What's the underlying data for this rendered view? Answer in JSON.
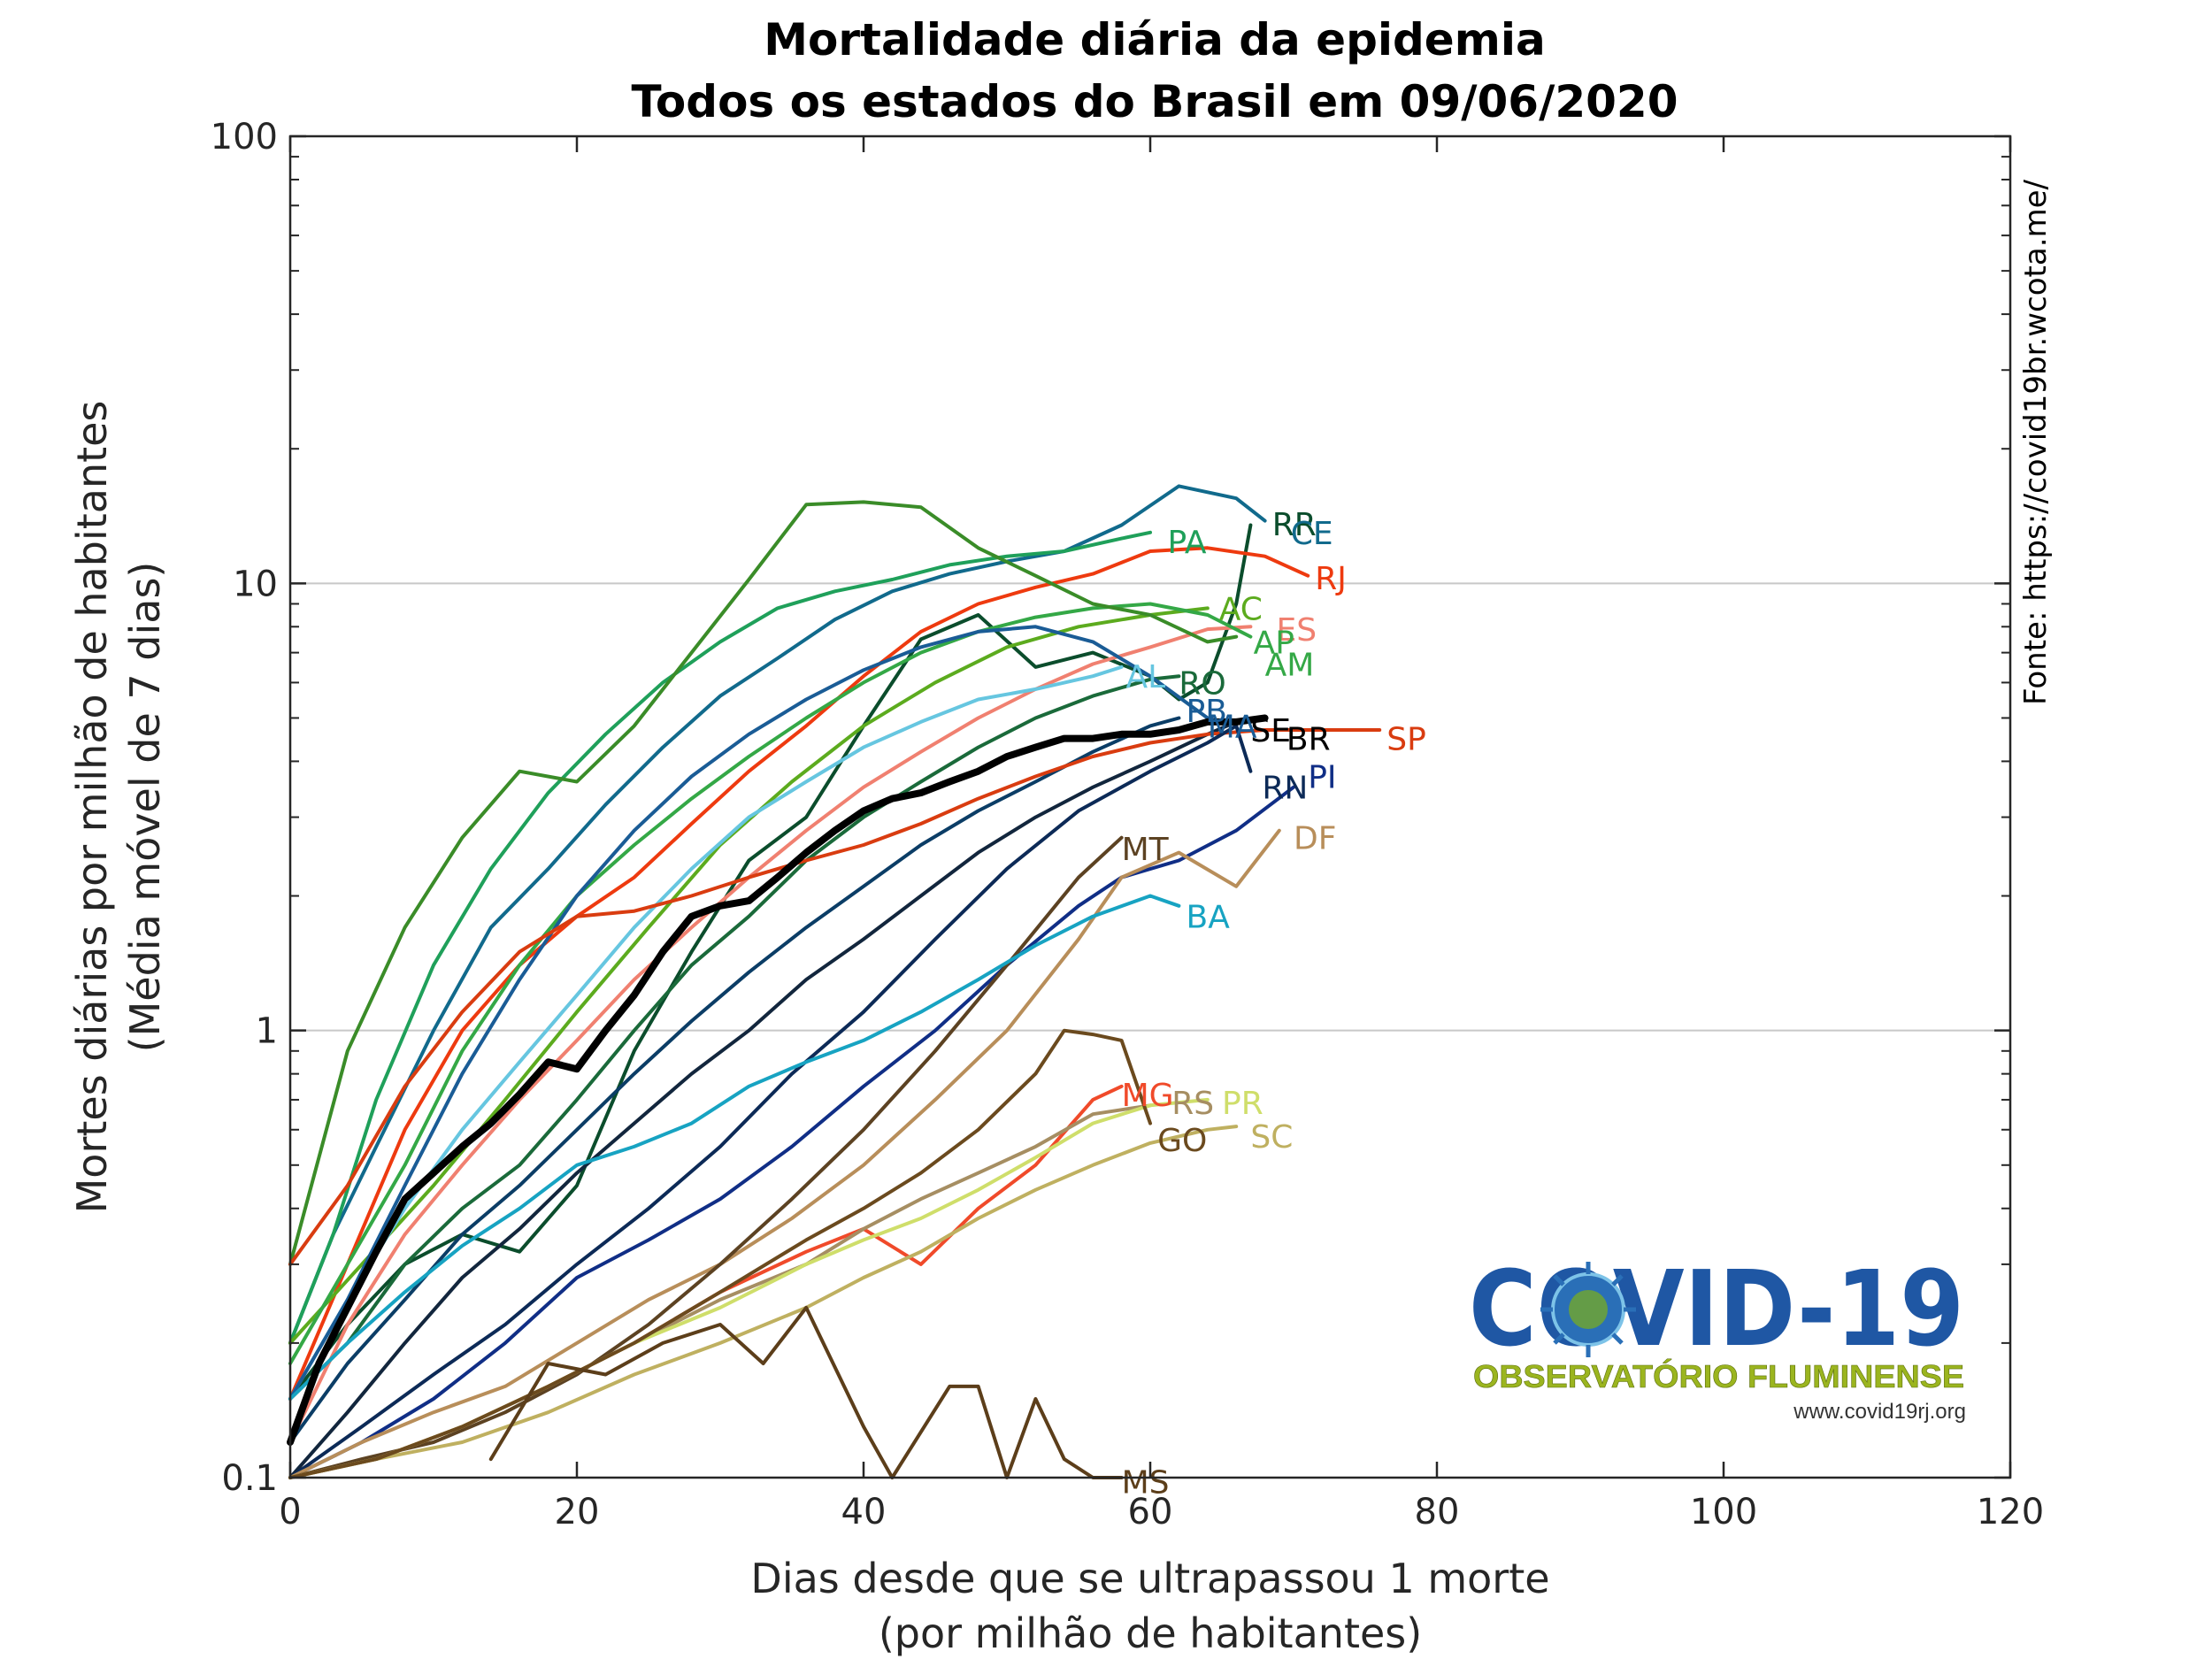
{
  "chart_data": {
    "type": "line",
    "title": "Mortalidade diária da epidemia",
    "subtitle": "Todos os estados do Brasil em 09/06/2020",
    "xlabel": [
      "Dias desde que se ultrapassou 1 morte",
      "(por milhão de habitantes)"
    ],
    "ylabel": [
      "Mortes diárias por milhão de habitantes",
      "(Média móvel de 7 dias)"
    ],
    "source": "Fonte: https://covid19br.wcota.me/",
    "xlim": [
      0,
      120
    ],
    "ylim": [
      0.1,
      100
    ],
    "yscale": "log",
    "x_ticks": [
      "0",
      "20",
      "40",
      "60",
      "80",
      "100",
      "120"
    ],
    "y_ticks": [
      "0.1",
      "1",
      "10",
      "100"
    ],
    "grid": "horizontal at decades",
    "series": [
      {
        "name": "RR",
        "color": "#0b4d2c",
        "x": [
          0,
          4,
          8,
          12,
          16,
          20,
          24,
          28,
          32,
          36,
          40,
          44,
          48,
          52,
          56,
          60,
          62,
          64,
          66,
          67
        ],
        "y": [
          0.15,
          0.22,
          0.3,
          0.35,
          0.32,
          0.45,
          0.9,
          1.5,
          2.4,
          3.0,
          4.8,
          7.5,
          8.5,
          6.5,
          7.0,
          6.2,
          5.5,
          6.0,
          9.0,
          13.5
        ]
      },
      {
        "name": "CE",
        "color": "#116a8c",
        "x": [
          0,
          3,
          6,
          10,
          14,
          18,
          22,
          26,
          30,
          34,
          38,
          42,
          46,
          50,
          54,
          58,
          62,
          66,
          68
        ],
        "y": [
          0.2,
          0.35,
          0.55,
          1.0,
          1.7,
          2.3,
          3.2,
          4.3,
          5.6,
          6.8,
          8.3,
          9.6,
          10.5,
          11.2,
          11.8,
          13.5,
          16.5,
          15.5,
          13.8
        ]
      },
      {
        "name": "RJ",
        "color": "#ee3a0f",
        "x": [
          0,
          4,
          8,
          12,
          16,
          20,
          24,
          28,
          32,
          36,
          40,
          44,
          48,
          52,
          56,
          60,
          64,
          68,
          71
        ],
        "y": [
          0.15,
          0.3,
          0.6,
          1.0,
          1.4,
          1.8,
          2.2,
          2.9,
          3.8,
          4.8,
          6.2,
          7.8,
          9.0,
          9.8,
          10.5,
          11.8,
          12.0,
          11.5,
          10.4
        ]
      },
      {
        "name": "PA",
        "color": "#1fa05a",
        "x": [
          0,
          3,
          6,
          10,
          14,
          18,
          22,
          26,
          30,
          34,
          38,
          42,
          46,
          50,
          54,
          58,
          60
        ],
        "y": [
          0.2,
          0.35,
          0.7,
          1.4,
          2.3,
          3.4,
          4.6,
          6.0,
          7.4,
          8.8,
          9.6,
          10.2,
          11.0,
          11.5,
          11.8,
          12.6,
          13.0
        ]
      },
      {
        "name": "AC",
        "color": "#5cab1e",
        "x": [
          0,
          5,
          10,
          15,
          20,
          25,
          30,
          35,
          40,
          45,
          50,
          55,
          60,
          64
        ],
        "y": [
          0.2,
          0.3,
          0.45,
          0.7,
          1.1,
          1.7,
          2.6,
          3.6,
          4.8,
          6.0,
          7.2,
          8.0,
          8.5,
          8.8
        ]
      },
      {
        "name": "ES",
        "color": "#f08070",
        "x": [
          0,
          4,
          8,
          12,
          16,
          20,
          24,
          28,
          32,
          36,
          40,
          44,
          48,
          52,
          56,
          60,
          64,
          67
        ],
        "y": [
          0.12,
          0.22,
          0.35,
          0.5,
          0.7,
          0.95,
          1.3,
          1.7,
          2.2,
          2.8,
          3.5,
          4.2,
          5.0,
          5.8,
          6.6,
          7.2,
          7.9,
          8.0
        ]
      },
      {
        "name": "AP",
        "color": "#34a846",
        "x": [
          0,
          4,
          8,
          12,
          16,
          20,
          24,
          28,
          32,
          36,
          40,
          44,
          48,
          52,
          56,
          60,
          64,
          67
        ],
        "y": [
          0.18,
          0.3,
          0.5,
          0.9,
          1.4,
          2.0,
          2.6,
          3.3,
          4.1,
          5.0,
          6.0,
          7.0,
          7.8,
          8.4,
          8.8,
          9.0,
          8.5,
          7.6
        ]
      },
      {
        "name": "AM",
        "color": "#3a8c28",
        "x": [
          0,
          4,
          8,
          12,
          16,
          20,
          24,
          28,
          32,
          36,
          40,
          44,
          48,
          52,
          56,
          60,
          64,
          66
        ],
        "y": [
          0.3,
          0.9,
          1.7,
          2.7,
          3.8,
          3.6,
          4.8,
          7.0,
          10.2,
          15.0,
          15.2,
          14.8,
          12.0,
          10.4,
          9.0,
          8.5,
          7.4,
          7.6
        ]
      },
      {
        "name": "AL",
        "color": "#66c6e0",
        "x": [
          0,
          4,
          8,
          12,
          16,
          20,
          24,
          28,
          32,
          36,
          40,
          44,
          48,
          52,
          56,
          58
        ],
        "y": [
          0.15,
          0.25,
          0.4,
          0.6,
          0.85,
          1.2,
          1.7,
          2.3,
          3.0,
          3.6,
          4.3,
          4.9,
          5.5,
          5.8,
          6.2,
          6.5
        ]
      },
      {
        "name": "RO",
        "color": "#1a6a3a",
        "x": [
          0,
          4,
          8,
          12,
          16,
          20,
          24,
          28,
          32,
          36,
          40,
          44,
          48,
          52,
          56,
          60,
          62
        ],
        "y": [
          0.15,
          0.2,
          0.3,
          0.4,
          0.5,
          0.7,
          1.0,
          1.4,
          1.8,
          2.4,
          3.0,
          3.6,
          4.3,
          5.0,
          5.6,
          6.1,
          6.2
        ]
      },
      {
        "name": "PB",
        "color": "#0b3d66",
        "x": [
          0,
          4,
          8,
          12,
          16,
          20,
          24,
          28,
          32,
          36,
          40,
          44,
          48,
          52,
          56,
          60,
          62
        ],
        "y": [
          0.12,
          0.18,
          0.25,
          0.35,
          0.45,
          0.6,
          0.8,
          1.05,
          1.35,
          1.7,
          2.1,
          2.6,
          3.1,
          3.6,
          4.2,
          4.8,
          5.0
        ]
      },
      {
        "name": "MA",
        "color": "#1a5c96",
        "x": [
          0,
          4,
          8,
          12,
          16,
          20,
          24,
          28,
          32,
          36,
          40,
          44,
          48,
          52,
          56,
          60,
          64
        ],
        "y": [
          0.15,
          0.25,
          0.45,
          0.8,
          1.3,
          2.0,
          2.8,
          3.7,
          4.6,
          5.5,
          6.4,
          7.2,
          7.8,
          8.0,
          7.4,
          6.2,
          5.0
        ]
      },
      {
        "name": "SE",
        "color": "#12263d",
        "x": [
          0,
          4,
          8,
          12,
          16,
          20,
          24,
          28,
          32,
          36,
          40,
          44,
          48,
          52,
          56,
          60,
          64,
          66
        ],
        "y": [
          0.1,
          0.14,
          0.2,
          0.28,
          0.36,
          0.48,
          0.62,
          0.8,
          1.0,
          1.3,
          1.6,
          2.0,
          2.5,
          3.0,
          3.5,
          4.0,
          4.6,
          4.9
        ]
      },
      {
        "name": "BR",
        "color": "#000000",
        "x": [
          0,
          2,
          4,
          6,
          8,
          10,
          12,
          14,
          16,
          18,
          20,
          22,
          24,
          26,
          28,
          30,
          32,
          34,
          36,
          38,
          40,
          42,
          44,
          46,
          48,
          50,
          52,
          54,
          56,
          58,
          60,
          62,
          64,
          66,
          68
        ],
        "y": [
          0.12,
          0.18,
          0.24,
          0.32,
          0.42,
          0.48,
          0.55,
          0.62,
          0.72,
          0.85,
          0.82,
          1.0,
          1.2,
          1.5,
          1.8,
          1.9,
          1.95,
          2.2,
          2.5,
          2.8,
          3.1,
          3.3,
          3.4,
          3.6,
          3.8,
          4.1,
          4.3,
          4.5,
          4.5,
          4.6,
          4.6,
          4.7,
          4.9,
          4.9,
          5.0
        ]
      },
      {
        "name": "SP",
        "color": "#d93c10",
        "x": [
          0,
          4,
          8,
          12,
          16,
          20,
          24,
          28,
          32,
          36,
          40,
          44,
          48,
          52,
          56,
          60,
          64,
          68,
          72,
          76
        ],
        "y": [
          0.3,
          0.45,
          0.75,
          1.1,
          1.5,
          1.8,
          1.85,
          2.0,
          2.2,
          2.4,
          2.6,
          2.9,
          3.3,
          3.7,
          4.1,
          4.4,
          4.6,
          4.7,
          4.7,
          4.7
        ]
      },
      {
        "name": "PI",
        "color": "#102e86",
        "x": [
          0,
          5,
          10,
          15,
          20,
          25,
          30,
          35,
          40,
          45,
          50,
          55,
          58,
          62,
          66,
          70
        ],
        "y": [
          0.1,
          0.12,
          0.15,
          0.2,
          0.28,
          0.34,
          0.42,
          0.55,
          0.75,
          1.0,
          1.4,
          1.9,
          2.2,
          2.4,
          2.8,
          3.5
        ]
      },
      {
        "name": "RN",
        "color": "#0c2a57",
        "x": [
          0,
          5,
          10,
          15,
          20,
          25,
          30,
          35,
          40,
          45,
          50,
          55,
          60,
          64,
          66,
          67
        ],
        "y": [
          0.1,
          0.13,
          0.17,
          0.22,
          0.3,
          0.4,
          0.55,
          0.8,
          1.1,
          1.6,
          2.3,
          3.1,
          3.8,
          4.4,
          4.8,
          3.8
        ]
      },
      {
        "name": "DF",
        "color": "#b88e5a",
        "x": [
          0,
          5,
          10,
          15,
          20,
          25,
          30,
          35,
          40,
          45,
          50,
          55,
          58,
          62,
          66,
          69
        ],
        "y": [
          0.1,
          0.12,
          0.14,
          0.16,
          0.2,
          0.25,
          0.3,
          0.38,
          0.5,
          0.7,
          1.0,
          1.6,
          2.2,
          2.5,
          2.1,
          2.8
        ]
      },
      {
        "name": "MT",
        "color": "#5c4222",
        "x": [
          0,
          5,
          10,
          15,
          20,
          25,
          30,
          35,
          40,
          45,
          50,
          55,
          58
        ],
        "y": [
          0.1,
          0.11,
          0.12,
          0.14,
          0.17,
          0.22,
          0.3,
          0.42,
          0.6,
          0.9,
          1.4,
          2.2,
          2.7
        ]
      },
      {
        "name": "BA",
        "color": "#17a3c2",
        "x": [
          0,
          4,
          8,
          12,
          16,
          20,
          24,
          28,
          32,
          36,
          40,
          44,
          48,
          52,
          56,
          60,
          62
        ],
        "y": [
          0.15,
          0.2,
          0.26,
          0.33,
          0.4,
          0.5,
          0.55,
          0.62,
          0.75,
          0.85,
          0.95,
          1.1,
          1.3,
          1.55,
          1.8,
          2.0,
          1.9
        ]
      },
      {
        "name": "MG",
        "color": "#f04a2a",
        "x": [
          0,
          6,
          12,
          18,
          24,
          30,
          36,
          40,
          44,
          48,
          52,
          56,
          58
        ],
        "y": [
          0.1,
          0.11,
          0.13,
          0.16,
          0.2,
          0.26,
          0.32,
          0.36,
          0.3,
          0.4,
          0.5,
          0.7,
          0.75
        ]
      },
      {
        "name": "RS",
        "color": "#a68e62",
        "x": [
          0,
          6,
          12,
          18,
          24,
          30,
          36,
          40,
          44,
          48,
          52,
          56,
          60
        ],
        "y": [
          0.1,
          0.11,
          0.13,
          0.16,
          0.2,
          0.25,
          0.3,
          0.36,
          0.42,
          0.48,
          0.55,
          0.65,
          0.68
        ]
      },
      {
        "name": "PR",
        "color": "#cfde6a",
        "x": [
          0,
          6,
          12,
          18,
          24,
          30,
          36,
          40,
          44,
          48,
          52,
          56,
          60,
          64
        ],
        "y": [
          0.1,
          0.11,
          0.13,
          0.16,
          0.2,
          0.24,
          0.3,
          0.34,
          0.38,
          0.44,
          0.52,
          0.62,
          0.68,
          0.7
        ]
      },
      {
        "name": "SC",
        "color": "#bfb060",
        "x": [
          0,
          6,
          12,
          18,
          24,
          30,
          36,
          40,
          44,
          48,
          52,
          56,
          60,
          64,
          66
        ],
        "y": [
          0.1,
          0.11,
          0.12,
          0.14,
          0.17,
          0.2,
          0.24,
          0.28,
          0.32,
          0.38,
          0.44,
          0.5,
          0.56,
          0.6,
          0.61
        ]
      },
      {
        "name": "GO",
        "color": "#6b4a1e",
        "x": [
          0,
          6,
          12,
          18,
          24,
          30,
          36,
          40,
          44,
          48,
          52,
          54,
          56,
          58,
          60
        ],
        "y": [
          0.1,
          0.11,
          0.13,
          0.16,
          0.2,
          0.26,
          0.34,
          0.4,
          0.48,
          0.6,
          0.8,
          1.0,
          0.98,
          0.95,
          0.62
        ]
      },
      {
        "name": "MS",
        "color": "#5c3e1a",
        "x": [
          14,
          18,
          22,
          26,
          30,
          33,
          36,
          40,
          42,
          46,
          48,
          50,
          52,
          54,
          56,
          58
        ],
        "y": [
          0.11,
          0.18,
          0.17,
          0.2,
          0.22,
          0.18,
          0.24,
          0.13,
          0.1,
          0.16,
          0.16,
          0.1,
          0.15,
          0.11,
          0.1,
          0.1
        ]
      }
    ],
    "labels": [
      {
        "text": "RR",
        "color": "#0b4d2c",
        "x": 68.5,
        "y": 13.6
      },
      {
        "text": "CE",
        "color": "#116a8c",
        "x": 69.8,
        "y": 13.0
      },
      {
        "text": "PA",
        "color": "#1fa05a",
        "x": 61.2,
        "y": 12.4
      },
      {
        "text": "RJ",
        "color": "#ee3a0f",
        "x": 71.5,
        "y": 10.3
      },
      {
        "text": "AC",
        "color": "#5cab1e",
        "x": 64.8,
        "y": 8.8
      },
      {
        "text": "ES",
        "color": "#f08070",
        "x": 68.8,
        "y": 7.9
      },
      {
        "text": "AP",
        "color": "#34a846",
        "x": 67.2,
        "y": 7.4
      },
      {
        "text": "AM",
        "color": "#34a846",
        "x": 68.0,
        "y": 6.6
      },
      {
        "text": "AL",
        "color": "#66c6e0",
        "x": 58.3,
        "y": 6.2
      },
      {
        "text": "RO",
        "color": "#1a6a3a",
        "x": 62.0,
        "y": 6.0
      },
      {
        "text": "PB",
        "color": "#1a5c96",
        "x": 62.5,
        "y": 5.2
      },
      {
        "text": "MA",
        "color": "#1a5c96",
        "x": 64.0,
        "y": 4.8
      },
      {
        "text": "SE",
        "color": "#000000",
        "x": 67.0,
        "y": 4.7
      },
      {
        "text": "BR",
        "color": "#000000",
        "x": 69.5,
        "y": 4.5
      },
      {
        "text": "SP",
        "color": "#d93c10",
        "x": 76.5,
        "y": 4.5
      },
      {
        "text": "PI",
        "color": "#102e86",
        "x": 71.0,
        "y": 3.7
      },
      {
        "text": "RN",
        "color": "#0c2a57",
        "x": 67.8,
        "y": 3.5
      },
      {
        "text": "DF",
        "color": "#b88e5a",
        "x": 70.0,
        "y": 2.7
      },
      {
        "text": "MT",
        "color": "#5c4222",
        "x": 58.0,
        "y": 2.55
      },
      {
        "text": "BA",
        "color": "#17a3c2",
        "x": 62.5,
        "y": 1.8
      },
      {
        "text": "MG",
        "color": "#f04a2a",
        "x": 58.0,
        "y": 0.72
      },
      {
        "text": "RS",
        "color": "#a68e62",
        "x": 61.5,
        "y": 0.69
      },
      {
        "text": "PR",
        "color": "#cfde6a",
        "x": 65.0,
        "y": 0.69
      },
      {
        "text": "SC",
        "color": "#bfb060",
        "x": 67.0,
        "y": 0.58
      },
      {
        "text": "GO",
        "color": "#6b4a1e",
        "x": 60.5,
        "y": 0.57
      },
      {
        "text": "MS",
        "color": "#5c3e1a",
        "x": 58.0,
        "y": 0.098
      }
    ]
  },
  "logo": {
    "title": "COVID-19",
    "subtitle": "OBSERVATÓRIO FLUMINENSE",
    "url": "www.covid19rj.org"
  }
}
